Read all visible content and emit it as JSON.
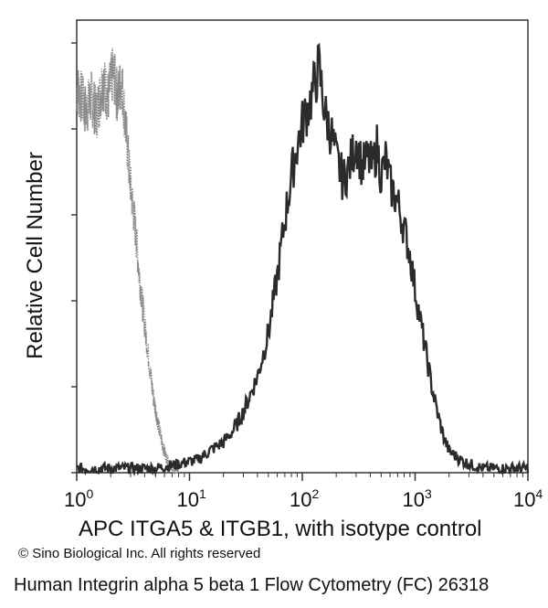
{
  "chart_data": {
    "type": "area",
    "x_scale": "log",
    "xlim": [
      1,
      10000
    ],
    "ylim": [
      0,
      1
    ],
    "xlabel": "APC ITGA5 & ITGB1, with isotype control",
    "ylabel": "Relative Cell Number",
    "x_ticks": [
      {
        "value": 1,
        "base": "10",
        "exp": "0"
      },
      {
        "value": 10,
        "base": "10",
        "exp": "1"
      },
      {
        "value": 100,
        "base": "10",
        "exp": "2"
      },
      {
        "value": 1000,
        "base": "10",
        "exp": "3"
      },
      {
        "value": 10000,
        "base": "10",
        "exp": "4"
      }
    ],
    "y_tick_count": 5,
    "grid": false,
    "series": [
      {
        "style": "light-dotted",
        "color": "#8a8a8a",
        "x": [
          1.0,
          1.1,
          1.2,
          1.35,
          1.5,
          1.7,
          1.9,
          2.1,
          2.3,
          2.5,
          2.7,
          3.0,
          3.3,
          3.6,
          4.0,
          4.4,
          4.8,
          5.3,
          5.8,
          6.3,
          7.0,
          8.0
        ],
        "y": [
          0.88,
          0.86,
          0.83,
          0.86,
          0.82,
          0.9,
          0.86,
          0.92,
          0.86,
          0.9,
          0.8,
          0.66,
          0.56,
          0.45,
          0.34,
          0.25,
          0.17,
          0.11,
          0.06,
          0.03,
          0.01,
          0.0
        ]
      },
      {
        "style": "dark-solid",
        "color": "#2b2b2b",
        "x": [
          1.0,
          2.0,
          5.0,
          8.0,
          12.0,
          15.0,
          20.0,
          25.0,
          30.0,
          40.0,
          50.0,
          60.0,
          70.0,
          80.0,
          90.0,
          100.0,
          120.0,
          140.0,
          160.0,
          180.0,
          200.0,
          230.0,
          260.0,
          300.0,
          340.0,
          380.0,
          420.0,
          460.0,
          500.0,
          550.0,
          600.0,
          700.0,
          800.0,
          900.0,
          1000.0,
          1200.0,
          1400.0,
          1600.0,
          1800.0,
          2000.0,
          2500.0,
          3000.0,
          4000.0,
          6000.0,
          10000.0
        ],
        "y": [
          0.01,
          0.01,
          0.01,
          0.02,
          0.03,
          0.05,
          0.07,
          0.1,
          0.14,
          0.22,
          0.32,
          0.45,
          0.58,
          0.68,
          0.75,
          0.8,
          0.86,
          0.93,
          0.82,
          0.78,
          0.72,
          0.67,
          0.7,
          0.76,
          0.7,
          0.72,
          0.7,
          0.75,
          0.68,
          0.72,
          0.66,
          0.62,
          0.56,
          0.5,
          0.42,
          0.3,
          0.2,
          0.13,
          0.08,
          0.05,
          0.03,
          0.02,
          0.01,
          0.01,
          0.01
        ]
      }
    ]
  },
  "copyright": "© Sino Biological Inc. All rights reserved",
  "caption": "Human Integrin alpha 5 beta 1 Flow Cytometry (FC) 26318"
}
